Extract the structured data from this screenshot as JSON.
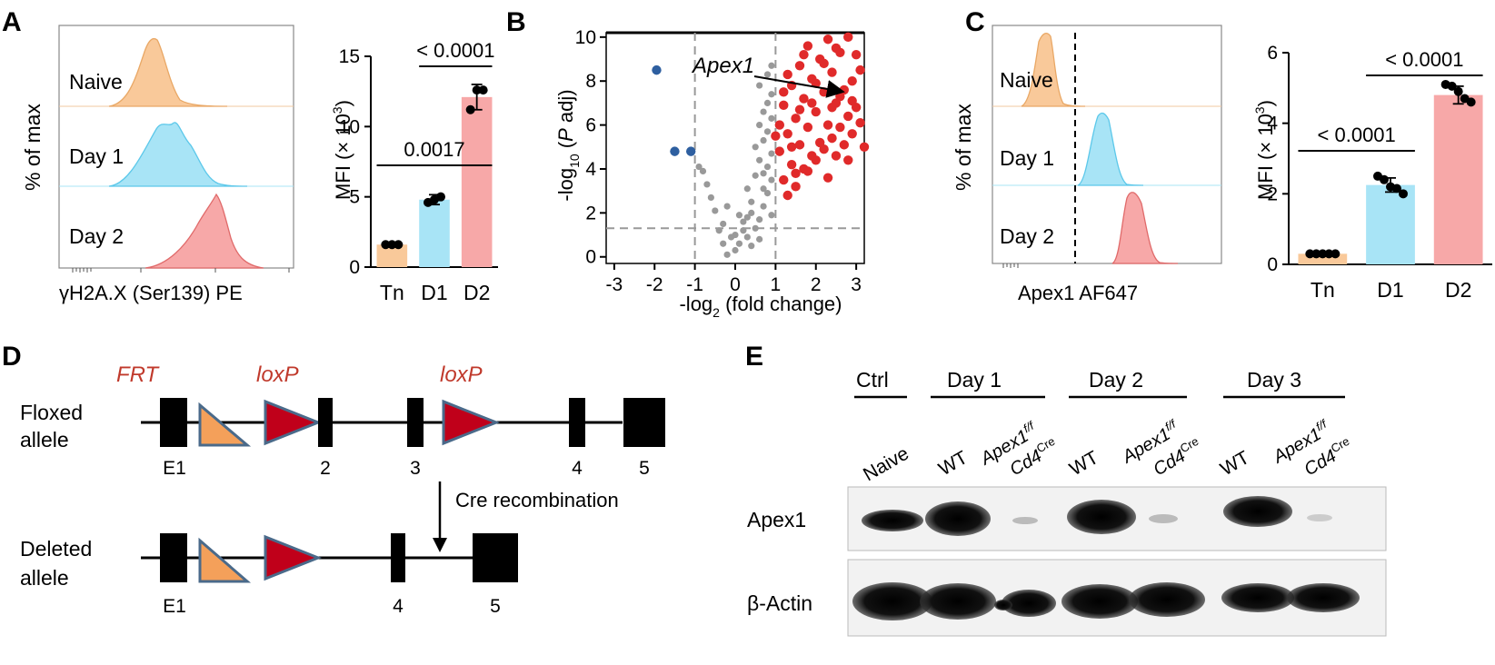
{
  "panel_letters": {
    "a": "A",
    "b": "B",
    "c": "C",
    "d": "D",
    "e": "E"
  },
  "panel_a": {
    "histogram": {
      "ylabel": "% of max",
      "xlabel": "γH2A.X (Ser139) PE",
      "rows": [
        {
          "label": "Naive",
          "fill": "#f9c99a",
          "stroke": "#e9a866"
        },
        {
          "label": "Day 1",
          "fill": "#a8e4f6",
          "stroke": "#5cc8ea"
        },
        {
          "label": "Day 2",
          "fill": "#f7a8a8",
          "stroke": "#e06a6a"
        }
      ]
    },
    "bar": {
      "ylabel": "MFI (× 10³)",
      "ylabel_main": "MFI (× 10",
      "ylabel_sup": "3",
      "ylabel_end": ")",
      "yticks": [
        "0",
        "5",
        "10",
        "15"
      ],
      "stats": [
        {
          "label": "0.0017",
          "from": 0,
          "to": 2
        },
        {
          "label": "< 0.0001",
          "from": 1,
          "to": 2
        }
      ]
    }
  },
  "panel_b": {
    "xlabel_main": "-log",
    "xlabel_sub": "2",
    "xlabel_end": " (fold change)",
    "ylabel_main": "-log",
    "ylabel_sub": "10",
    "ylabel_mid": " (",
    "ylabel_it": "P",
    "ylabel_end": " adj)",
    "xticks": [
      "-3",
      "-2",
      "-1",
      "0",
      "1",
      "2",
      "3"
    ],
    "yticks": [
      "0",
      "2",
      "4",
      "6",
      "8",
      "10"
    ],
    "annotation": "Apex1"
  },
  "panel_c": {
    "histogram": {
      "ylabel": "% of max",
      "xlabel": "Apex1  AF647",
      "rows": [
        {
          "label": "Naive",
          "fill": "#f9c99a",
          "stroke": "#e9a866"
        },
        {
          "label": "Day 1",
          "fill": "#a8e4f6",
          "stroke": "#5cc8ea"
        },
        {
          "label": "Day 2",
          "fill": "#f7a8a8",
          "stroke": "#e06a6a"
        }
      ]
    },
    "bar": {
      "ylabel_main": "MFI (× 10",
      "ylabel_sup": "3",
      "ylabel_end": ")",
      "yticks": [
        "0",
        "2",
        "4",
        "6"
      ],
      "stats": [
        {
          "label": "< 0.0001",
          "from": 0,
          "to": 1
        },
        {
          "label": "< 0.0001",
          "from": 1,
          "to": 2
        }
      ]
    }
  },
  "panel_d": {
    "floxed_label_1": "Floxed",
    "floxed_label_2": "allele",
    "deleted_label_1": "Deleted",
    "deleted_label_2": "allele",
    "frt": "FRT",
    "loxp_1": "loxP",
    "loxp_2": "loxP",
    "exons_top": [
      "E1",
      "2",
      "3",
      "4",
      "5"
    ],
    "exons_bottom": [
      "E1",
      "4",
      "5"
    ],
    "recombination": "Cre recombination"
  },
  "panel_e": {
    "groups": [
      "Ctrl",
      "Day 1",
      "Day 2",
      "Day 3"
    ],
    "lanes": [
      "Naive",
      "WT",
      "WT",
      "WT"
    ],
    "ko_main": "Apex1",
    "ko_sup": "f/f",
    "ko_cre": "Cd4",
    "ko_cre_sup": "Cre",
    "rows": [
      "Apex1",
      "β-Actin"
    ]
  },
  "chart_data": [
    {
      "type": "bar",
      "panel": "A",
      "categories": [
        "Tn",
        "D1",
        "D2"
      ],
      "colors": [
        "#f9c99a",
        "#a8e4f6",
        "#f7a8a8"
      ],
      "values": [
        1.6,
        4.8,
        12.1
      ],
      "errors": [
        0.1,
        0.35,
        0.9
      ],
      "points": [
        [
          1.6,
          1.6,
          1.6
        ],
        [
          4.6,
          4.8,
          5.0
        ],
        [
          11.2,
          12.6,
          12.6
        ]
      ],
      "ylabel": "MFI (× 10³)",
      "ylim": [
        0,
        15
      ]
    },
    {
      "type": "scatter",
      "panel": "B",
      "xlabel": "-log2 (fold change)",
      "ylabel": "-log10 (P adj)",
      "xlim": [
        -3.2,
        3.2
      ],
      "ylim": [
        -0.3,
        10.2
      ],
      "thresholds": {
        "x": [
          -1,
          1
        ],
        "y": 1.3
      },
      "series": [
        {
          "color": "#2e5fa0",
          "points": [
            [
              -1.95,
              8.5
            ],
            [
              -1.5,
              4.8
            ],
            [
              -1.1,
              4.8
            ]
          ]
        },
        {
          "color": "#999999",
          "points": [
            [
              -0.2,
              0.1
            ],
            [
              0,
              0.3
            ],
            [
              0.1,
              0.6
            ],
            [
              -0.1,
              0.9
            ],
            [
              0.2,
              1.2
            ],
            [
              0.4,
              0.5
            ],
            [
              0.3,
              0.9
            ],
            [
              0.5,
              1.3
            ],
            [
              -0.3,
              1.5
            ],
            [
              0.6,
              1.7
            ],
            [
              0.1,
              1.9
            ],
            [
              -0.5,
              2.1
            ],
            [
              0.7,
              2.3
            ],
            [
              0.4,
              2.5
            ],
            [
              -0.6,
              2.7
            ],
            [
              0.8,
              2.9
            ],
            [
              0.3,
              3.1
            ],
            [
              -0.7,
              3.3
            ],
            [
              0.9,
              3.5
            ],
            [
              0.5,
              3.7
            ],
            [
              -0.8,
              3.9
            ],
            [
              0.2,
              1.6
            ],
            [
              0.6,
              0.8
            ],
            [
              -0.4,
              1.2
            ],
            [
              0.9,
              1.9
            ],
            [
              0.7,
              3.1
            ],
            [
              -0.2,
              2.3
            ],
            [
              0.8,
              4.1
            ],
            [
              0.6,
              4.4
            ],
            [
              0.9,
              4.7
            ],
            [
              0.5,
              5.0
            ],
            [
              0.7,
              5.3
            ],
            [
              0.8,
              5.7
            ],
            [
              0.6,
              6.0
            ],
            [
              0.9,
              6.3
            ],
            [
              0.7,
              6.6
            ],
            [
              0.8,
              7.0
            ],
            [
              0.9,
              7.4
            ],
            [
              0.6,
              7.8
            ],
            [
              0.8,
              8.3
            ],
            [
              0.9,
              8.7
            ],
            [
              0.7,
              3.8
            ],
            [
              -0.9,
              4.1
            ],
            [
              0.4,
              2.0
            ],
            [
              -0.3,
              0.6
            ],
            [
              0.0,
              1.0
            ],
            [
              0.3,
              1.8
            ]
          ]
        },
        {
          "color": "#e02a2a",
          "points": [
            [
              1.2,
              3.5
            ],
            [
              1.4,
              4.2
            ],
            [
              1.1,
              4.8
            ],
            [
              1.6,
              5.1
            ],
            [
              1.3,
              5.6
            ],
            [
              1.8,
              5.9
            ],
            [
              1.5,
              6.3
            ],
            [
              2.0,
              6.6
            ],
            [
              1.2,
              6.9
            ],
            [
              1.7,
              7.2
            ],
            [
              2.2,
              7.5
            ],
            [
              1.4,
              7.8
            ],
            [
              1.9,
              8.1
            ],
            [
              2.4,
              8.4
            ],
            [
              1.6,
              8.7
            ],
            [
              2.1,
              9.0
            ],
            [
              2.6,
              9.3
            ],
            [
              1.8,
              9.6
            ],
            [
              2.3,
              9.9
            ],
            [
              2.8,
              10.0
            ],
            [
              1.3,
              2.8
            ],
            [
              1.5,
              3.2
            ],
            [
              1.8,
              3.9
            ],
            [
              2.0,
              4.4
            ],
            [
              2.2,
              4.9
            ],
            [
              2.4,
              5.4
            ],
            [
              2.6,
              5.9
            ],
            [
              2.8,
              6.4
            ],
            [
              3.0,
              6.8
            ],
            [
              2.5,
              7.0
            ],
            [
              2.7,
              7.6
            ],
            [
              2.9,
              8.0
            ],
            [
              3.1,
              8.5
            ],
            [
              2.3,
              6.0
            ],
            [
              2.1,
              5.2
            ],
            [
              1.9,
              4.6
            ],
            [
              1.7,
              4.0
            ],
            [
              2.5,
              4.6
            ],
            [
              2.7,
              5.1
            ],
            [
              2.9,
              5.6
            ],
            [
              3.1,
              6.1
            ],
            [
              1.1,
              6.0
            ],
            [
              1.2,
              7.5
            ],
            [
              1.3,
              8.3
            ],
            [
              2.0,
              7.9
            ],
            [
              2.4,
              6.8
            ],
            [
              2.6,
              7.3
            ],
            [
              1.6,
              6.7
            ],
            [
              1.9,
              7.0
            ],
            [
              2.2,
              8.8
            ],
            [
              2.5,
              9.5
            ],
            [
              3.0,
              9.2
            ],
            [
              1.4,
              5.0
            ],
            [
              1.0,
              5.5
            ],
            [
              3.2,
              5.0
            ],
            [
              2.8,
              4.4
            ],
            [
              1.5,
              3.8
            ],
            [
              2.3,
              3.6
            ],
            [
              1.7,
              9.2
            ],
            [
              2.9,
              7.1
            ]
          ]
        }
      ],
      "annotation": "Apex1"
    },
    {
      "type": "bar",
      "panel": "C",
      "categories": [
        "Tn",
        "D1",
        "D2"
      ],
      "colors": [
        "#f9c99a",
        "#a8e4f6",
        "#f7a8a8"
      ],
      "values": [
        0.3,
        2.25,
        4.8
      ],
      "errors": [
        0.05,
        0.2,
        0.25
      ],
      "points": [
        [
          0.3,
          0.3,
          0.3,
          0.3,
          0.3
        ],
        [
          2.5,
          2.4,
          2.2,
          2.15,
          2.0
        ],
        [
          5.1,
          5.05,
          4.9,
          4.7,
          4.6
        ]
      ],
      "ylabel": "MFI (× 10³)",
      "ylim": [
        0,
        6
      ]
    }
  ]
}
